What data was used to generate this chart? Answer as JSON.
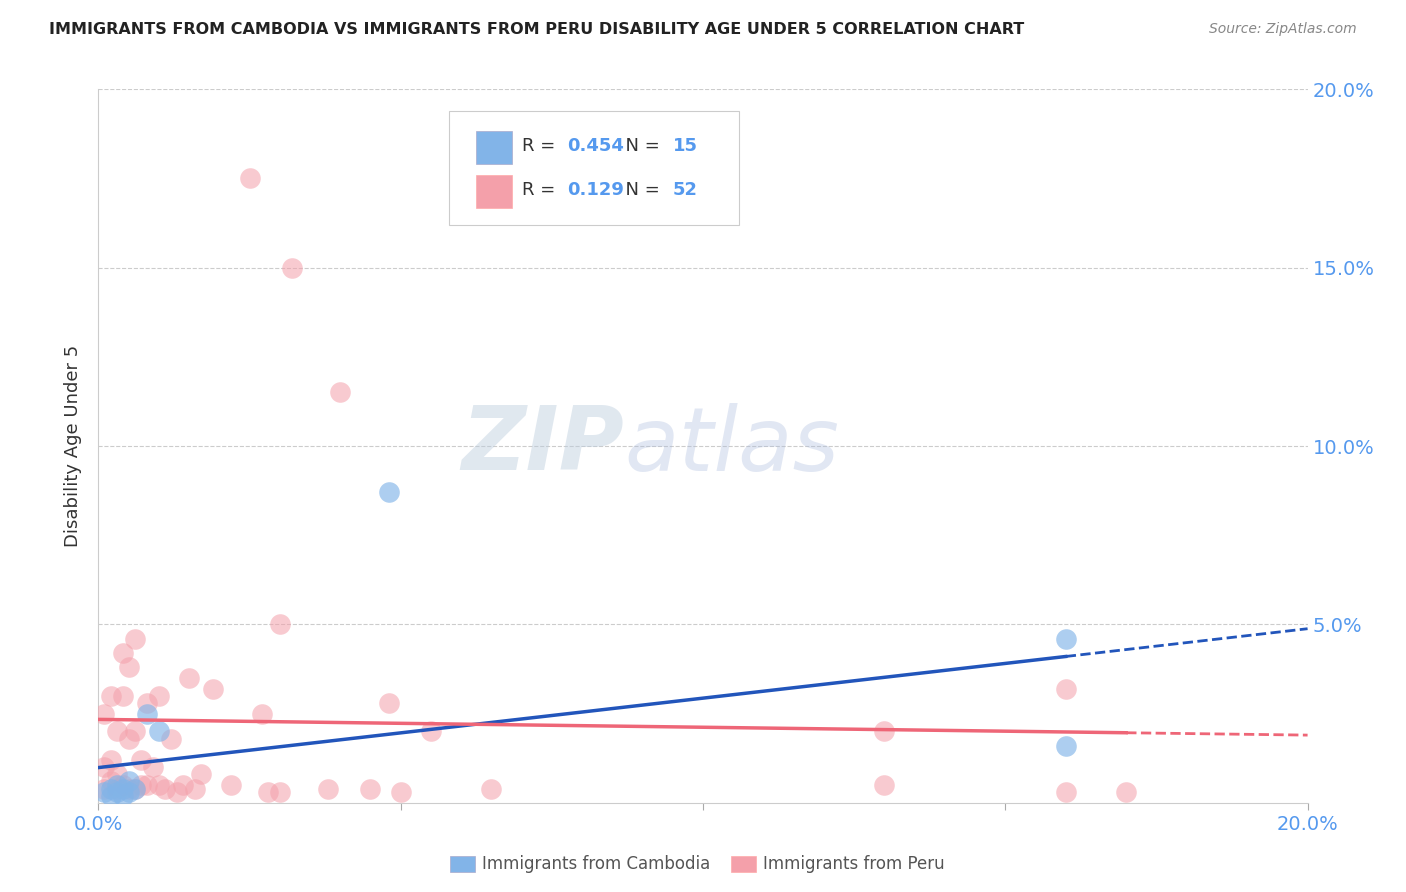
{
  "title": "IMMIGRANTS FROM CAMBODIA VS IMMIGRANTS FROM PERU DISABILITY AGE UNDER 5 CORRELATION CHART",
  "source": "Source: ZipAtlas.com",
  "ylabel": "Disability Age Under 5",
  "xlim": [
    0.0,
    0.2
  ],
  "ylim": [
    0.0,
    0.2
  ],
  "yticks_right": [
    0.05,
    0.1,
    0.15,
    0.2
  ],
  "ytick_labels_right": [
    "5.0%",
    "10.0%",
    "15.0%",
    "20.0%"
  ],
  "watermark_zip": "ZIP",
  "watermark_atlas": "atlas",
  "legend_R_cambodia": "0.454",
  "legend_N_cambodia": "15",
  "legend_R_peru": "0.129",
  "legend_N_peru": "52",
  "legend_label_cambodia": "Immigrants from Cambodia",
  "legend_label_peru": "Immigrants from Peru",
  "color_cambodia": "#82B4E8",
  "color_peru": "#F4A0AA",
  "color_trend_cambodia": "#2255BB",
  "color_trend_peru": "#EE6677",
  "background_color": "#ffffff",
  "grid_color": "#cccccc",
  "right_axis_color": "#5599EE",
  "cambodia_x": [
    0.001,
    0.002,
    0.002,
    0.003,
    0.003,
    0.004,
    0.004,
    0.005,
    0.005,
    0.006,
    0.008,
    0.01,
    0.048,
    0.16,
    0.16
  ],
  "cambodia_y": [
    0.003,
    0.004,
    0.002,
    0.005,
    0.003,
    0.004,
    0.002,
    0.006,
    0.003,
    0.004,
    0.025,
    0.02,
    0.087,
    0.046,
    0.016
  ],
  "peru_x": [
    0.001,
    0.001,
    0.001,
    0.002,
    0.002,
    0.002,
    0.003,
    0.003,
    0.003,
    0.004,
    0.004,
    0.004,
    0.005,
    0.005,
    0.005,
    0.006,
    0.006,
    0.006,
    0.007,
    0.007,
    0.008,
    0.008,
    0.009,
    0.01,
    0.01,
    0.011,
    0.012,
    0.013,
    0.014,
    0.015,
    0.016,
    0.017,
    0.019,
    0.022,
    0.025,
    0.027,
    0.028,
    0.03,
    0.03,
    0.032,
    0.038,
    0.04,
    0.045,
    0.048,
    0.05,
    0.055,
    0.065,
    0.13,
    0.13,
    0.16,
    0.16,
    0.17
  ],
  "peru_y": [
    0.004,
    0.01,
    0.025,
    0.006,
    0.012,
    0.03,
    0.004,
    0.008,
    0.02,
    0.005,
    0.03,
    0.042,
    0.004,
    0.018,
    0.038,
    0.004,
    0.02,
    0.046,
    0.005,
    0.012,
    0.005,
    0.028,
    0.01,
    0.005,
    0.03,
    0.004,
    0.018,
    0.003,
    0.005,
    0.035,
    0.004,
    0.008,
    0.032,
    0.005,
    0.175,
    0.025,
    0.003,
    0.05,
    0.003,
    0.15,
    0.004,
    0.115,
    0.004,
    0.028,
    0.003,
    0.02,
    0.004,
    0.005,
    0.02,
    0.003,
    0.032,
    0.003
  ]
}
